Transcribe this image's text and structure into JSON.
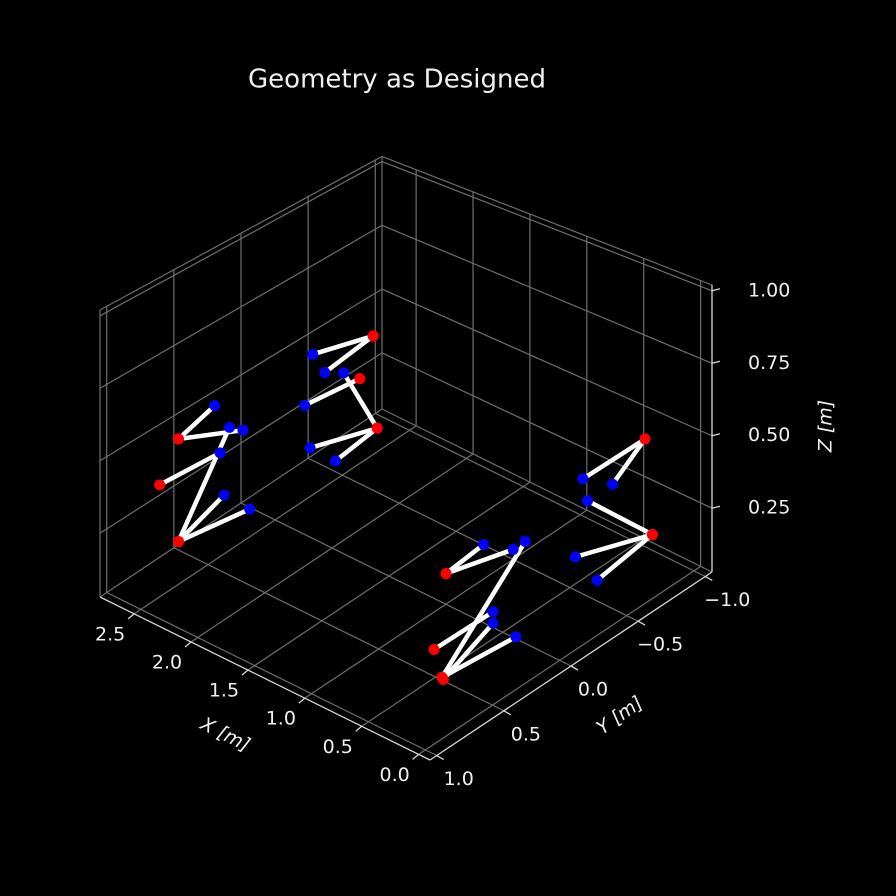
{
  "chart_data": {
    "type": "truss3d",
    "title": "Geometry as Designed",
    "xlabel": "X [m]",
    "ylabel": "Y [m]",
    "zlabel": "Z [m]",
    "xlim": [
      -0.1,
      2.8
    ],
    "ylim": [
      -1.05,
      1.05
    ],
    "zlim": [
      0.03,
      1.02
    ],
    "xticks": [
      {
        "value": 0,
        "label": "0.0"
      },
      0.5,
      {
        "value": 1,
        "label": "1.0"
      },
      1.5,
      {
        "value": 2,
        "label": "2.0"
      },
      2.5
    ],
    "yticks": [
      {
        "value": -1,
        "label": "−1.0"
      },
      {
        "value": -0.5,
        "label": "−0.5"
      },
      {
        "value": 0,
        "label": "0.0"
      },
      0.5,
      {
        "value": 1,
        "label": "1.0"
      }
    ],
    "zticks": [
      0.25,
      {
        "value": 0.5,
        "label": "0.50"
      },
      0.75,
      {
        "value": 1,
        "label": "1.00"
      }
    ],
    "grid": true,
    "line_color": "#ffffff",
    "start_color": "#ff0000",
    "end_color": "#0000ff",
    "members": {
      "x0": [
        2.5,
        2.5,
        2.5,
        2.5,
        2.5,
        2.5,
        2.5,
        2.5,
        2.5,
        2.5,
        2.5,
        2.5,
        0.29,
        0.29,
        0.29,
        0.29,
        0.29,
        0.29,
        0.135,
        0.135,
        0.07,
        0.07,
        0.07
      ],
      "y0": [
        0.72,
        0.72,
        0.86,
        0.72,
        0.72,
        0.72,
        -0.73,
        -0.73,
        -0.63,
        -0.76,
        -0.76,
        -0.76,
        0.6,
        0.63,
        0.69,
        0.63,
        0.62,
        0.6,
        -0.75,
        -0.75,
        -0.75,
        -0.75,
        -0.75
      ],
      "z0": [
        0.54,
        0.54,
        0.42,
        0.18,
        0.18,
        0.18,
        0.48,
        0.48,
        0.35,
        0.12,
        0.12,
        0.12,
        0.46,
        0.11,
        0.225,
        0.11,
        0.1,
        0.46,
        0.54,
        0.54,
        0.22,
        0.22,
        0.22
      ],
      "x1": [
        2.5,
        2.5,
        2.5,
        2.5,
        2.5,
        2.5,
        2.5,
        2.5,
        2.5,
        2.5,
        2.5,
        2.5,
        0.29,
        0.29,
        0.29,
        0.29,
        0.29,
        0.29,
        0.42,
        0.68,
        0.64,
        0.51,
        0.32
      ],
      "y1": [
        0.45,
        0.24,
        0.41,
        0.34,
        0.38,
        0.19,
        -0.28,
        -0.37,
        -0.22,
        -0.51,
        -0.26,
        -0.45,
        0.1,
        0.01,
        0.25,
        0.08,
        0.25,
        0.32,
        -0.75,
        -0.75,
        -0.75,
        -0.55,
        -0.55
      ],
      "z1": [
        0.58,
        0.43,
        0.4,
        0.47,
        0.24,
        0.13,
        0.55,
        0.455,
        0.38,
        0.41,
        0.21,
        0.1,
        0.39,
        0.39,
        0.22,
        0.08,
        0.18,
        0.475,
        0.33,
        0.3,
        0.23,
        0.12,
        0.075
      ]
    }
  }
}
